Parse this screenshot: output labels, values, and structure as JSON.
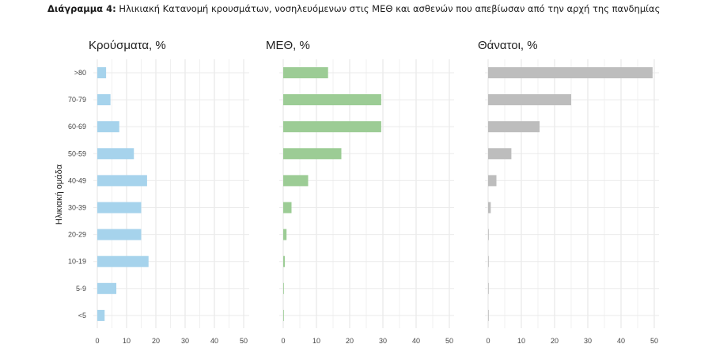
{
  "caption": {
    "prefix": "Διάγραμμα 4:",
    "text": "Ηλικιακή Κατανομή κρουσμάτων, νοσηλευόμενων στις ΜΕΘ και ασθενών που απεβίωσαν από την αρχή της πανδημίας"
  },
  "chart_data": {
    "type": "bar",
    "orientation": "horizontal",
    "ylabel": "Ηλικιακή ομάδα",
    "categories": [
      ">80",
      "70-79",
      "60-69",
      "50-59",
      "40-49",
      "30-39",
      "20-29",
      "10-19",
      "5-9",
      "<5"
    ],
    "xlim": [
      0,
      50
    ],
    "xticks": [
      0,
      10,
      20,
      30,
      40,
      50
    ],
    "grid": true,
    "panels": [
      {
        "title": "Κρούσματα, %",
        "color": "#a6d3ec",
        "values": [
          3,
          4.5,
          7.5,
          12.5,
          17,
          15,
          15,
          17.5,
          6.5,
          2.5
        ]
      },
      {
        "title": "ΜΕΘ, %",
        "color": "#9ccc95",
        "values": [
          13.5,
          29.5,
          29.5,
          17.5,
          7.5,
          2.5,
          1,
          0.5,
          0.2,
          0.2
        ]
      },
      {
        "title": "Θάνατοι, %",
        "color": "#bdbdbd",
        "values": [
          49.5,
          25,
          15.5,
          7,
          2.5,
          0.8,
          0.2,
          0.1,
          0.05,
          0.05
        ]
      }
    ]
  }
}
